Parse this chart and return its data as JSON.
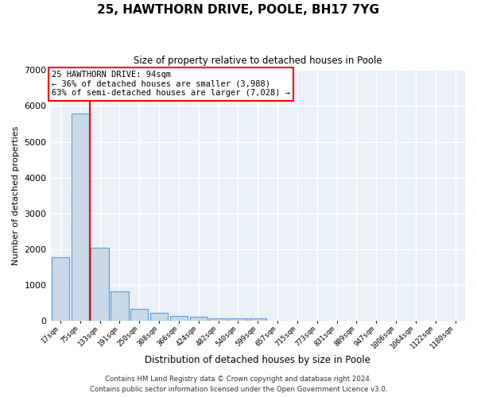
{
  "title": "25, HAWTHORN DRIVE, POOLE, BH17 7YG",
  "subtitle": "Size of property relative to detached houses in Poole",
  "xlabel": "Distribution of detached houses by size in Poole",
  "ylabel": "Number of detached properties",
  "bar_labels": [
    "17sqm",
    "75sqm",
    "133sqm",
    "191sqm",
    "250sqm",
    "308sqm",
    "366sqm",
    "424sqm",
    "482sqm",
    "540sqm",
    "599sqm",
    "657sqm",
    "715sqm",
    "773sqm",
    "831sqm",
    "889sqm",
    "947sqm",
    "1006sqm",
    "1064sqm",
    "1122sqm",
    "1180sqm"
  ],
  "bar_values": [
    1780,
    5800,
    2050,
    830,
    340,
    220,
    140,
    110,
    75,
    65,
    65,
    0,
    0,
    0,
    0,
    0,
    0,
    0,
    0,
    0,
    0
  ],
  "bar_color": "#c9d9e8",
  "bar_edge_color": "#5b9bd5",
  "annotation_text": "25 HAWTHORN DRIVE: 94sqm\n← 36% of detached houses are smaller (3,988)\n63% of semi-detached houses are larger (7,028) →",
  "annotation_box_edge_color": "red",
  "vline_color": "red",
  "vline_x": 1.5,
  "ylim": [
    0,
    7000
  ],
  "yticks": [
    0,
    1000,
    2000,
    3000,
    4000,
    5000,
    6000,
    7000
  ],
  "background_color": "#eaf0f8",
  "grid_color": "white",
  "footer_line1": "Contains HM Land Registry data © Crown copyright and database right 2024.",
  "footer_line2": "Contains public sector information licensed under the Open Government Licence v3.0."
}
